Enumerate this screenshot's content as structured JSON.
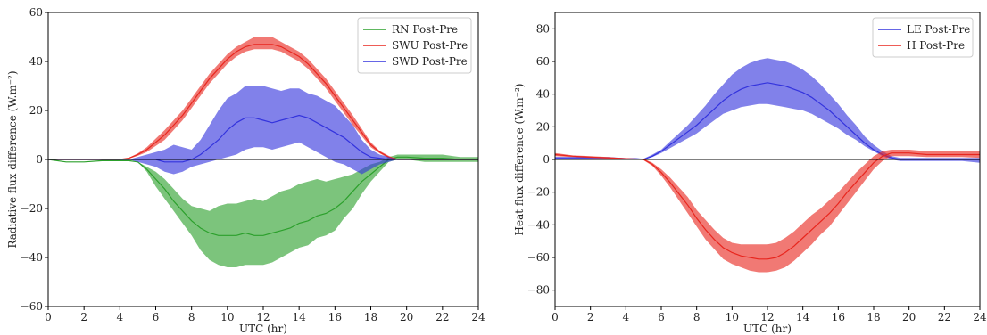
{
  "chart_data": [
    {
      "type": "line",
      "xlabel": "UTC (hr)",
      "ylabel": "Radiative flux difference (W.m⁻²)",
      "xlim": [
        0,
        24
      ],
      "ylim": [
        -60,
        60
      ],
      "xticks": [
        0,
        2,
        4,
        6,
        8,
        10,
        12,
        14,
        16,
        18,
        20,
        22,
        24
      ],
      "yticks": [
        -60,
        -40,
        -20,
        0,
        20,
        40,
        60
      ],
      "zero_line": true,
      "grid": false,
      "legend_position": "upper right",
      "series": [
        {
          "name": "RN Post-Pre",
          "color": "#2ca02c",
          "x": [
            0,
            1,
            2,
            3,
            4,
            4.5,
            5,
            5.5,
            6,
            6.5,
            7,
            7.5,
            8,
            8.5,
            9,
            9.5,
            10,
            10.5,
            11,
            11.5,
            12,
            12.5,
            13,
            13.5,
            14,
            14.5,
            15,
            15.5,
            16,
            16.5,
            17,
            17.5,
            18,
            18.5,
            19,
            19.5,
            20,
            21,
            22,
            23,
            24
          ],
          "values": [
            0,
            -1,
            -1,
            -0.5,
            -0.5,
            -0.5,
            -1,
            -4,
            -8,
            -12,
            -17,
            -21,
            -25,
            -28,
            -30,
            -31,
            -31,
            -31,
            -30,
            -31,
            -31,
            -30,
            -29,
            -28,
            -26,
            -25,
            -23,
            -22,
            -20,
            -17,
            -13,
            -9,
            -6,
            -3,
            0,
            1,
            1,
            0.5,
            0.5,
            0,
            0
          ],
          "lower": [
            0,
            -1,
            -1,
            -0.5,
            -0.5,
            -0.5,
            -1,
            -5,
            -11,
            -16,
            -21,
            -26,
            -31,
            -37,
            -41,
            -43,
            -44,
            -44,
            -43,
            -43,
            -43,
            -42,
            -40,
            -38,
            -36,
            -35,
            -32,
            -31,
            -29,
            -24,
            -20,
            -14,
            -9,
            -5,
            -1,
            0,
            0,
            -1,
            -1,
            -1,
            -1
          ],
          "upper": [
            0,
            -1,
            -1,
            -0.5,
            -0.5,
            -0.5,
            -1,
            -3,
            -5,
            -8,
            -12,
            -16,
            -19,
            -20,
            -21,
            -19,
            -18,
            -18,
            -17,
            -16,
            -17,
            -15,
            -13,
            -12,
            -10,
            -9,
            -8,
            -9,
            -8,
            -7,
            -6,
            -4,
            -2,
            -1,
            1,
            2,
            2,
            2,
            2,
            1,
            1
          ]
        },
        {
          "name": "SWU  Post-Pre",
          "color": "#e8261e",
          "x": [
            0,
            1,
            2,
            3,
            4,
            4.5,
            5,
            5.5,
            6,
            6.5,
            7,
            7.5,
            8,
            8.5,
            9,
            9.5,
            10,
            10.5,
            11,
            11.5,
            12,
            12.5,
            13,
            13.5,
            14,
            14.5,
            15,
            15.5,
            16,
            16.5,
            17,
            17.5,
            18,
            18.5,
            19,
            19.5,
            20,
            21,
            22,
            23,
            24
          ],
          "values": [
            0,
            0,
            0,
            0,
            0,
            0.5,
            2,
            4,
            7,
            10,
            14,
            18,
            23,
            28,
            33,
            37,
            41,
            44,
            46,
            47,
            47,
            47,
            46,
            44,
            42,
            39,
            35,
            31,
            26,
            21,
            16,
            11,
            6,
            3,
            1,
            0,
            0,
            0,
            0,
            0,
            0
          ],
          "lower": [
            0,
            0,
            0,
            0,
            0,
            0.3,
            1.5,
            3,
            5.5,
            8,
            12,
            16,
            21,
            26,
            31,
            35,
            39,
            42,
            44,
            45,
            45,
            45,
            44,
            42,
            40,
            37,
            33,
            29,
            24,
            19,
            14,
            9.5,
            5,
            2.5,
            0.5,
            0,
            0,
            0,
            0,
            0,
            0
          ],
          "upper": [
            0,
            0,
            0,
            0,
            0,
            0.7,
            2.5,
            5,
            8.5,
            12,
            16,
            20,
            25,
            30,
            35,
            39,
            43,
            46,
            48,
            50,
            50,
            50,
            48,
            46,
            44,
            41,
            37,
            33,
            28,
            23,
            18,
            12.5,
            7,
            3.5,
            1.5,
            0,
            0,
            0,
            0,
            0,
            0
          ]
        },
        {
          "name": "SWD  Post-Pre",
          "color": "#3333dd",
          "x": [
            0,
            1,
            2,
            3,
            4,
            4.5,
            5,
            5.5,
            6,
            6.5,
            7,
            7.5,
            8,
            8.5,
            9,
            9.5,
            10,
            10.5,
            11,
            11.5,
            12,
            12.5,
            13,
            13.5,
            14,
            14.5,
            15,
            15.5,
            16,
            16.5,
            17,
            17.5,
            18,
            18.5,
            19,
            19.5,
            20,
            21,
            22,
            23,
            24
          ],
          "values": [
            0,
            0,
            0,
            0,
            0,
            0,
            0,
            0,
            0,
            -1,
            -1,
            -1,
            0,
            2,
            5,
            8,
            12,
            15,
            17,
            17,
            16,
            15,
            16,
            17,
            18,
            17,
            15,
            13,
            11,
            9,
            6,
            3,
            1,
            0.5,
            0,
            0,
            0,
            0,
            0,
            0,
            0
          ],
          "lower": [
            0,
            0,
            0,
            0,
            0,
            0,
            -1,
            -2,
            -3,
            -5,
            -6,
            -5,
            -3,
            -2,
            -1,
            0,
            1,
            2,
            4,
            5,
            5,
            4,
            5,
            6,
            7,
            5,
            3,
            1,
            -1,
            -2,
            -4,
            -6,
            -4,
            -2,
            -1,
            0,
            0,
            0,
            0,
            0,
            0
          ],
          "upper": [
            0,
            0,
            0,
            0,
            0,
            0,
            1,
            2,
            3,
            4,
            6,
            5,
            4,
            8,
            14,
            20,
            25,
            27,
            30,
            30,
            30,
            29,
            28,
            29,
            29,
            27,
            26,
            24,
            22,
            18,
            14,
            8,
            4,
            2,
            1,
            0,
            0,
            0,
            0,
            0,
            0
          ]
        }
      ]
    },
    {
      "type": "line",
      "xlabel": "UTC (hr)",
      "ylabel": "Heat flux difference (W.m⁻²)",
      "xlim": [
        0,
        24
      ],
      "ylim": [
        -90,
        90
      ],
      "xticks": [
        0,
        2,
        4,
        6,
        8,
        10,
        12,
        14,
        16,
        18,
        20,
        22,
        24
      ],
      "yticks": [
        -80,
        -60,
        -40,
        -20,
        0,
        20,
        40,
        60,
        80
      ],
      "zero_line": true,
      "grid": false,
      "legend_position": "upper right",
      "series": [
        {
          "name": "LE Post-Pre",
          "color": "#3333dd",
          "x": [
            0,
            1,
            2,
            3,
            4,
            4.5,
            5,
            5.5,
            6,
            6.5,
            7,
            7.5,
            8,
            8.5,
            9,
            9.5,
            10,
            10.5,
            11,
            11.5,
            12,
            12.5,
            13,
            13.5,
            14,
            14.5,
            15,
            15.5,
            16,
            16.5,
            17,
            17.5,
            18,
            18.5,
            19,
            19.5,
            20,
            21,
            22,
            23,
            24
          ],
          "values": [
            1,
            1,
            1,
            1,
            0.5,
            0.5,
            0,
            2,
            5,
            9,
            13,
            17,
            21,
            26,
            31,
            36,
            40,
            43,
            45,
            46,
            47,
            46,
            45,
            43,
            41,
            38,
            34,
            30,
            25,
            20,
            15,
            10,
            6,
            3,
            1,
            0,
            0,
            0,
            0,
            0,
            0
          ],
          "lower": [
            0.5,
            0.5,
            0.5,
            0.5,
            0.3,
            0.3,
            0,
            1.5,
            4,
            7,
            10,
            13,
            16,
            20,
            24,
            28,
            30,
            32,
            33,
            34,
            34,
            33,
            32,
            31,
            30,
            28,
            25,
            22,
            19,
            15,
            12,
            8,
            5,
            2,
            0,
            -1,
            -1,
            -1,
            -1,
            -1,
            -2
          ],
          "upper": [
            1.5,
            1.5,
            1.5,
            1.5,
            0.8,
            0.8,
            0.5,
            3,
            6,
            11,
            16,
            21,
            27,
            33,
            40,
            46,
            52,
            56,
            59,
            61,
            62,
            61,
            60,
            58,
            55,
            51,
            46,
            40,
            34,
            27,
            21,
            14,
            9,
            5,
            2,
            1,
            1,
            1,
            1,
            1,
            1
          ]
        },
        {
          "name": "H  Post-Pre",
          "color": "#e8261e",
          "x": [
            0,
            1,
            2,
            3,
            4,
            4.5,
            5,
            5.5,
            6,
            6.5,
            7,
            7.5,
            8,
            8.5,
            9,
            9.5,
            10,
            10.5,
            11,
            11.5,
            12,
            12.5,
            13,
            13.5,
            14,
            14.5,
            15,
            15.5,
            16,
            16.5,
            17,
            17.5,
            18,
            18.5,
            19,
            19.5,
            20,
            21,
            22,
            23,
            24
          ],
          "values": [
            3,
            2,
            1.5,
            1,
            0.5,
            0.3,
            0,
            -3,
            -8,
            -14,
            -21,
            -28,
            -36,
            -43,
            -49,
            -54,
            -57,
            -59,
            -60,
            -61,
            -61,
            -60,
            -57,
            -53,
            -48,
            -43,
            -38,
            -33,
            -27,
            -20,
            -14,
            -8,
            -2,
            2,
            4,
            4,
            4,
            3,
            3,
            3,
            3
          ],
          "lower": [
            2,
            1.5,
            1,
            0.5,
            0.3,
            0.2,
            -0.5,
            -4,
            -10,
            -17,
            -25,
            -33,
            -41,
            -49,
            -55,
            -61,
            -64,
            -66,
            -68,
            -69,
            -69,
            -68,
            -66,
            -62,
            -57,
            -52,
            -46,
            -41,
            -34,
            -27,
            -20,
            -13,
            -6,
            -1,
            2,
            2,
            2,
            1.5,
            1.5,
            1.5,
            1
          ],
          "upper": [
            4,
            2.5,
            2,
            1.5,
            0.7,
            0.4,
            0.5,
            -2,
            -6,
            -11,
            -17,
            -23,
            -31,
            -37,
            -43,
            -48,
            -51,
            -52,
            -52,
            -52,
            -52,
            -51,
            -48,
            -44,
            -39,
            -34,
            -30,
            -25,
            -20,
            -14,
            -8,
            -3,
            2,
            5,
            6,
            6,
            6,
            5,
            5,
            5,
            5
          ]
        }
      ]
    }
  ]
}
